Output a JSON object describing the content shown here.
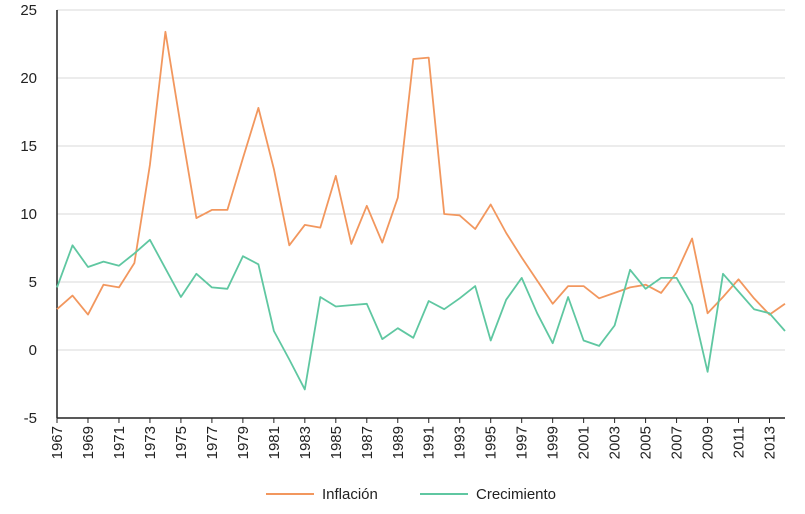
{
  "colors": {
    "inflacion": "#F2975E",
    "crecimiento": "#5FC7A1",
    "grid": "#d9d9d9",
    "axis": "#222222"
  },
  "chart_data": {
    "type": "line",
    "title": "",
    "xlabel": "",
    "ylabel": "",
    "ylim": [
      -5,
      25
    ],
    "yticks": [
      "-5",
      "0",
      "5",
      "10",
      "15",
      "20",
      "25"
    ],
    "xticks": [
      "1967",
      "1969",
      "1971",
      "1973",
      "1975",
      "1977",
      "1979",
      "1981",
      "1983",
      "1985",
      "1987",
      "1989",
      "1991",
      "1993",
      "1995",
      "1997",
      "1999",
      "2001",
      "2003",
      "2005",
      "2007",
      "2009",
      "2011",
      "2013"
    ],
    "x": [
      1967,
      1968,
      1969,
      1970,
      1971,
      1972,
      1973,
      1974,
      1975,
      1976,
      1977,
      1978,
      1979,
      1980,
      1981,
      1982,
      1983,
      1984,
      1985,
      1986,
      1987,
      1988,
      1989,
      1990,
      1991,
      1992,
      1993,
      1994,
      1995,
      1996,
      1997,
      1998,
      1999,
      2000,
      2001,
      2002,
      2003,
      2004,
      2005,
      2006,
      2007,
      2008,
      2009,
      2010,
      2011,
      2012,
      2013,
      2014
    ],
    "grid": true,
    "legend_position": "bottom",
    "series": [
      {
        "name": "Inflación",
        "values": [
          3.0,
          4.0,
          2.6,
          4.8,
          4.6,
          6.4,
          13.6,
          23.4,
          16.4,
          9.7,
          10.3,
          10.3,
          14.1,
          17.8,
          13.3,
          7.7,
          9.2,
          9.0,
          12.8,
          7.8,
          10.6,
          7.9,
          11.2,
          21.4,
          21.5,
          10.0,
          9.9,
          8.9,
          10.7,
          8.6,
          6.8,
          5.1,
          3.4,
          4.7,
          4.7,
          3.8,
          4.2,
          4.6,
          4.8,
          4.2,
          5.7,
          8.2,
          2.7,
          3.9,
          5.2,
          3.8,
          2.6,
          3.4
        ]
      },
      {
        "name": "Crecimiento",
        "values": [
          4.6,
          7.7,
          6.1,
          6.5,
          6.2,
          7.1,
          8.1,
          6.0,
          3.9,
          5.6,
          4.6,
          4.5,
          6.9,
          6.3,
          1.4,
          -0.7,
          -2.9,
          3.9,
          3.2,
          3.3,
          3.4,
          0.8,
          1.6,
          0.9,
          3.6,
          3.0,
          3.8,
          4.7,
          0.7,
          3.7,
          5.3,
          2.7,
          0.5,
          3.9,
          0.7,
          0.3,
          1.8,
          5.9,
          4.5,
          5.3,
          5.3,
          3.3,
          -1.6,
          5.6,
          4.3,
          3.0,
          2.7,
          1.4
        ]
      }
    ]
  }
}
